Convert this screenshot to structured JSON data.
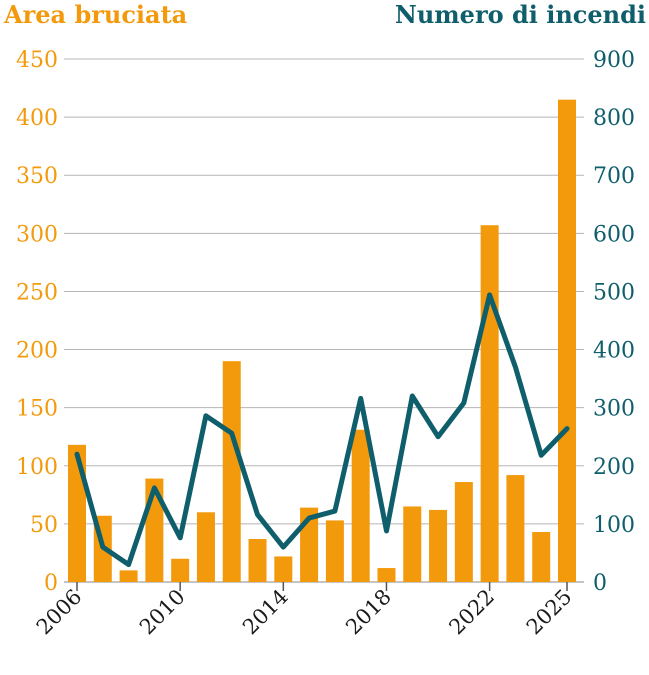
{
  "chart_data": {
    "type": "bar",
    "left_axis_title": "Area bruciata",
    "right_axis_title": "Numero di incendi",
    "left_ticks": [
      "450",
      "400",
      "350",
      "300",
      "250",
      "200",
      "150",
      "100",
      "50",
      "0"
    ],
    "right_ticks": [
      "900",
      "800",
      "700",
      "600",
      "500",
      "400",
      "300",
      "200",
      "100",
      "0"
    ],
    "ylim_left": [
      0,
      450
    ],
    "ylim_right": [
      0,
      900
    ],
    "x": [
      2006,
      2007,
      2008,
      2009,
      2010,
      2011,
      2012,
      2013,
      2014,
      2015,
      2016,
      2017,
      2018,
      2019,
      2020,
      2021,
      2022,
      2023,
      2024,
      2025
    ],
    "x_tick_labels": [
      "2006",
      "2010",
      "2014",
      "2018",
      "2022",
      "2025"
    ],
    "series": [
      {
        "type": "bar",
        "axis": "left",
        "values": [
          118,
          57,
          10,
          89,
          20,
          60,
          190,
          37,
          22,
          64,
          53,
          131,
          12,
          65,
          62,
          86,
          307,
          92,
          43,
          415
        ]
      },
      {
        "type": "line",
        "axis": "right",
        "values": [
          220,
          60,
          30,
          162,
          76,
          286,
          256,
          116,
          60,
          110,
          122,
          316,
          88,
          320,
          250,
          308,
          494,
          370,
          218,
          264
        ]
      }
    ],
    "grid": true,
    "colors": {
      "bars": "#f39a0c",
      "line": "#0f5e6b",
      "left_axis": "#f39a0c",
      "right_axis": "#0f5e6b",
      "grid": "#b5b5b5"
    }
  }
}
